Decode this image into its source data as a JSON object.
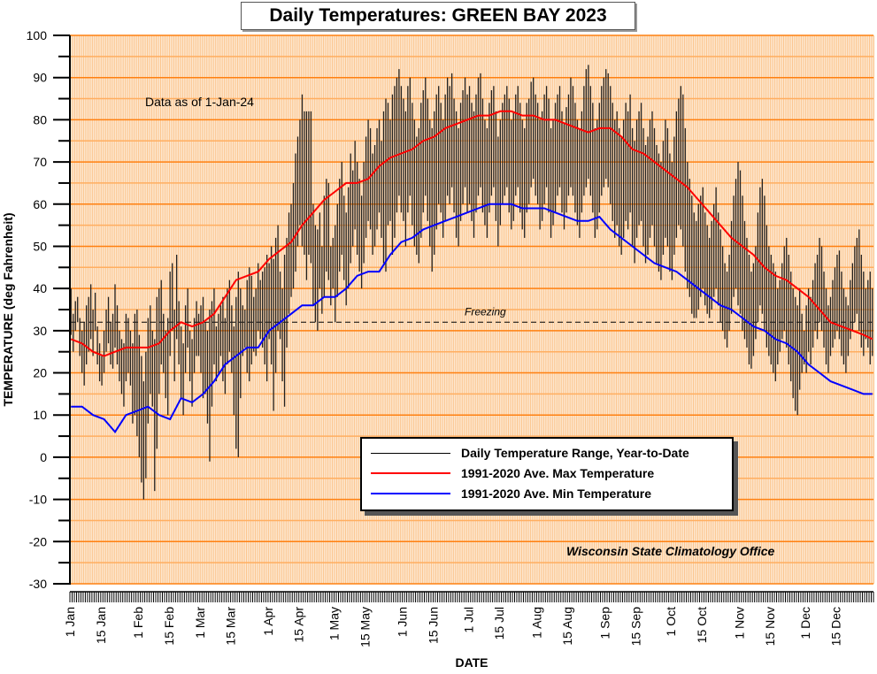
{
  "chart_data": {
    "type": "line",
    "title": "Daily Temperatures: GREEN BAY 2023",
    "xlabel": "DATE",
    "ylabel": "TEMPERATURE (deg Fahrenheit)",
    "ylim": [
      -30,
      100
    ],
    "yticks": [
      100,
      90,
      80,
      70,
      60,
      50,
      40,
      30,
      20,
      10,
      0,
      -10,
      -20,
      -30
    ],
    "ytick_labels": [
      "100",
      "90",
      "80",
      "70",
      "60",
      "50",
      "40",
      "30",
      "20",
      "10",
      "0",
      "-10",
      "-20",
      "-30"
    ],
    "xlim_days": [
      0,
      365
    ],
    "xticks": [
      {
        "day": 0,
        "label": "1 Jan"
      },
      {
        "day": 14,
        "label": "15 Jan"
      },
      {
        "day": 31,
        "label": "1 Feb"
      },
      {
        "day": 45,
        "label": "15 Feb"
      },
      {
        "day": 59,
        "label": "1 Mar"
      },
      {
        "day": 73,
        "label": "15 Mar"
      },
      {
        "day": 90,
        "label": "1 Apr"
      },
      {
        "day": 104,
        "label": "15 Apr"
      },
      {
        "day": 120,
        "label": "1 May"
      },
      {
        "day": 134,
        "label": "15 May"
      },
      {
        "day": 151,
        "label": "1 Jun"
      },
      {
        "day": 165,
        "label": "15 Jun"
      },
      {
        "day": 181,
        "label": "1 Jul"
      },
      {
        "day": 195,
        "label": "15 Jul"
      },
      {
        "day": 212,
        "label": "1 Aug"
      },
      {
        "day": 226,
        "label": "15 Aug"
      },
      {
        "day": 243,
        "label": "1 Sep"
      },
      {
        "day": 257,
        "label": "15 Sep"
      },
      {
        "day": 273,
        "label": "1 Oct"
      },
      {
        "day": 287,
        "label": "15 Oct"
      },
      {
        "day": 304,
        "label": "1 Nov"
      },
      {
        "day": 318,
        "label": "15 Nov"
      },
      {
        "day": 334,
        "label": "1 Dec"
      },
      {
        "day": 348,
        "label": "15 Dec"
      }
    ],
    "grid": true,
    "annotations": {
      "data_as_of": "Data as of 1-Jan-24",
      "freezing_label": "Freezing",
      "freezing_value": 32,
      "source": "Wisconsin State Climatology Office"
    },
    "legend": {
      "placement": "bottom-center",
      "entries": [
        {
          "label": "Daily Temperature Range, Year-to-Date",
          "color": "#000000"
        },
        {
          "label": "1991-2020 Ave. Max Temperature",
          "color": "#ff0000"
        },
        {
          "label": "1991-2020 Ave. Min Temperature",
          "color": "#0000ff"
        }
      ]
    },
    "daily_high": [
      40,
      34,
      37,
      38,
      33,
      30,
      32,
      36,
      38,
      41,
      35,
      39,
      31,
      27,
      24,
      30,
      35,
      38,
      32,
      34,
      41,
      36,
      30,
      28,
      27,
      34,
      33,
      30,
      27,
      34,
      35,
      29,
      24,
      18,
      25,
      33,
      36,
      30,
      28,
      38,
      40,
      42,
      34,
      30,
      33,
      44,
      46,
      35,
      48,
      37,
      31,
      27,
      36,
      40,
      30,
      28,
      33,
      37,
      34,
      36,
      38,
      32,
      30,
      35,
      37,
      40,
      31,
      34,
      36,
      38,
      33,
      40,
      42,
      36,
      31,
      38,
      44,
      40,
      36,
      35,
      42,
      45,
      43,
      38,
      40,
      46,
      42,
      44,
      45,
      48,
      46,
      50,
      47,
      52,
      55,
      44,
      40,
      48,
      52,
      58,
      60,
      65,
      72,
      76,
      80,
      86,
      82,
      82,
      82,
      82,
      60,
      55,
      54,
      58,
      50,
      62,
      66,
      65,
      50,
      52,
      55,
      60,
      66,
      70,
      62,
      58,
      64,
      72,
      68,
      75,
      70,
      66,
      62,
      70,
      76,
      80,
      78,
      72,
      74,
      78,
      80,
      75,
      82,
      85,
      84,
      80,
      86,
      88,
      90,
      92,
      88,
      85,
      82,
      88,
      90,
      84,
      80,
      76,
      78,
      84,
      87,
      90,
      85,
      80,
      78,
      82,
      86,
      88,
      84,
      80,
      86,
      90,
      88,
      91,
      85,
      82,
      78,
      84,
      87,
      90,
      86,
      88,
      84,
      82,
      86,
      90,
      91,
      85,
      80,
      78,
      84,
      87,
      88,
      82,
      76,
      80,
      84,
      86,
      88,
      85,
      80,
      82,
      86,
      88,
      84,
      80,
      78,
      84,
      85,
      89,
      90,
      86,
      84,
      80,
      82,
      86,
      88,
      85,
      78,
      80,
      84,
      86,
      88,
      82,
      79,
      83,
      86,
      90,
      88,
      84,
      80,
      78,
      82,
      88,
      92,
      93,
      88,
      84,
      78,
      80,
      84,
      88,
      90,
      92,
      91,
      88,
      84,
      80,
      82,
      78,
      76,
      80,
      84,
      82,
      86,
      78,
      75,
      80,
      82,
      84,
      78,
      74,
      76,
      80,
      82,
      78,
      74,
      72,
      70,
      75,
      80,
      78,
      72,
      70,
      76,
      82,
      85,
      88,
      86,
      78,
      70,
      66,
      62,
      58,
      56,
      60,
      62,
      64,
      58,
      55,
      52,
      56,
      60,
      64,
      58,
      54,
      50,
      46,
      44,
      48,
      56,
      62,
      66,
      70,
      68,
      62,
      56,
      52,
      48,
      44,
      46,
      50,
      58,
      64,
      66,
      62,
      55,
      50,
      48,
      46,
      44,
      40,
      42,
      46,
      50,
      52,
      48,
      44,
      40,
      38,
      36,
      40,
      34,
      30,
      36,
      40,
      38,
      42,
      46,
      48,
      52,
      50,
      44,
      40,
      36,
      38,
      42,
      45,
      48,
      49,
      44,
      40,
      38,
      36,
      42,
      46,
      50,
      52,
      54,
      48,
      44,
      40,
      42,
      44,
      40
    ],
    "daily_low": [
      29,
      25,
      30,
      32,
      24,
      20,
      17,
      22,
      25,
      28,
      24,
      30,
      22,
      18,
      17,
      20,
      25,
      27,
      22,
      21,
      26,
      22,
      18,
      15,
      12,
      18,
      20,
      17,
      8,
      10,
      5,
      0,
      -6,
      -10,
      -5,
      8,
      15,
      12,
      -8,
      2,
      15,
      22,
      20,
      14,
      10,
      24,
      30,
      18,
      28,
      22,
      14,
      10,
      20,
      26,
      18,
      12,
      20,
      24,
      24,
      20,
      14,
      15,
      8,
      -1,
      12,
      22,
      18,
      20,
      24,
      18,
      15,
      22,
      25,
      20,
      10,
      2,
      0,
      14,
      24,
      26,
      20,
      18,
      22,
      25,
      24,
      30,
      28,
      26,
      22,
      18,
      28,
      22,
      11,
      20,
      30,
      28,
      18,
      12,
      26,
      34,
      38,
      40,
      44,
      50,
      55,
      50,
      48,
      42,
      48,
      46,
      36,
      32,
      30,
      40,
      34,
      38,
      44,
      42,
      36,
      40,
      32,
      38,
      44,
      48,
      42,
      36,
      40,
      46,
      50,
      54,
      48,
      44,
      40,
      46,
      52,
      56,
      54,
      48,
      50,
      54,
      58,
      52,
      46,
      44,
      55,
      56,
      48,
      52,
      58,
      62,
      58,
      56,
      50,
      58,
      62,
      55,
      50,
      48,
      46,
      52,
      58,
      62,
      56,
      50,
      44,
      48,
      54,
      60,
      58,
      52,
      56,
      62,
      60,
      64,
      58,
      52,
      50,
      56,
      60,
      64,
      58,
      60,
      56,
      52,
      58,
      62,
      64,
      58,
      55,
      52,
      58,
      62,
      64,
      56,
      50,
      55,
      60,
      62,
      64,
      58,
      54,
      56,
      62,
      64,
      58,
      54,
      52,
      58,
      60,
      64,
      66,
      62,
      60,
      54,
      56,
      60,
      64,
      58,
      52,
      55,
      58,
      62,
      64,
      58,
      54,
      58,
      62,
      64,
      62,
      58,
      55,
      52,
      58,
      62,
      64,
      66,
      62,
      58,
      52,
      54,
      58,
      62,
      64,
      66,
      64,
      60,
      56,
      52,
      55,
      50,
      48,
      52,
      56,
      54,
      58,
      50,
      46,
      52,
      55,
      56,
      50,
      46,
      48,
      52,
      55,
      50,
      46,
      44,
      42,
      48,
      52,
      50,
      44,
      42,
      48,
      52,
      55,
      54,
      50,
      44,
      40,
      38,
      34,
      33,
      33,
      35,
      38,
      40,
      36,
      34,
      33,
      35,
      38,
      40,
      36,
      32,
      30,
      28,
      26,
      30,
      34,
      38,
      40,
      36,
      34,
      30,
      28,
      26,
      22,
      21,
      24,
      28,
      32,
      36,
      34,
      30,
      26,
      24,
      22,
      20,
      18,
      22,
      25,
      28,
      30,
      26,
      22,
      18,
      14,
      11,
      10,
      16,
      20,
      22,
      20,
      25,
      22,
      26,
      30,
      28,
      32,
      30,
      26,
      22,
      20,
      24,
      26,
      28,
      30,
      28,
      24,
      22,
      20,
      24,
      28,
      30,
      32,
      34,
      30,
      26,
      24,
      28,
      26,
      22,
      24
    ],
    "normal_days": [
      0,
      5,
      10,
      15,
      20,
      25,
      30,
      35,
      40,
      45,
      50,
      55,
      60,
      65,
      70,
      75,
      80,
      85,
      90,
      95,
      100,
      105,
      110,
      115,
      120,
      125,
      130,
      135,
      140,
      145,
      150,
      155,
      160,
      165,
      170,
      175,
      180,
      185,
      190,
      195,
      200,
      205,
      210,
      215,
      220,
      225,
      230,
      235,
      240,
      245,
      250,
      255,
      260,
      265,
      270,
      275,
      280,
      285,
      290,
      295,
      300,
      305,
      310,
      315,
      320,
      325,
      330,
      335,
      340,
      345,
      350,
      355,
      360,
      364
    ],
    "normal_max": [
      28,
      27,
      25,
      24,
      25,
      26,
      26,
      26,
      27,
      30,
      32,
      31,
      32,
      34,
      38,
      42,
      43,
      44,
      47,
      49,
      51,
      55,
      58,
      61,
      63,
      65,
      65,
      66,
      69,
      71,
      72,
      73,
      75,
      76,
      78,
      79,
      80,
      81,
      81,
      82,
      82,
      81,
      81,
      80,
      80,
      79,
      78,
      77,
      78,
      78,
      76,
      73,
      72,
      70,
      68,
      66,
      64,
      61,
      58,
      55,
      52,
      50,
      48,
      45,
      43,
      42,
      40,
      38,
      35,
      32,
      31,
      30,
      29,
      28
    ],
    "normal_min": [
      12,
      12,
      10,
      9,
      6,
      10,
      11,
      12,
      10,
      9,
      14,
      13,
      15,
      18,
      22,
      24,
      26,
      26,
      30,
      32,
      34,
      36,
      36,
      38,
      38,
      40,
      43,
      44,
      44,
      48,
      51,
      52,
      54,
      55,
      56,
      57,
      58,
      59,
      60,
      60,
      60,
      59,
      59,
      59,
      58,
      57,
      56,
      56,
      57,
      54,
      52,
      50,
      48,
      46,
      45,
      44,
      42,
      40,
      38,
      36,
      35,
      33,
      31,
      30,
      28,
      27,
      25,
      22,
      20,
      18,
      17,
      16,
      15,
      15
    ]
  }
}
